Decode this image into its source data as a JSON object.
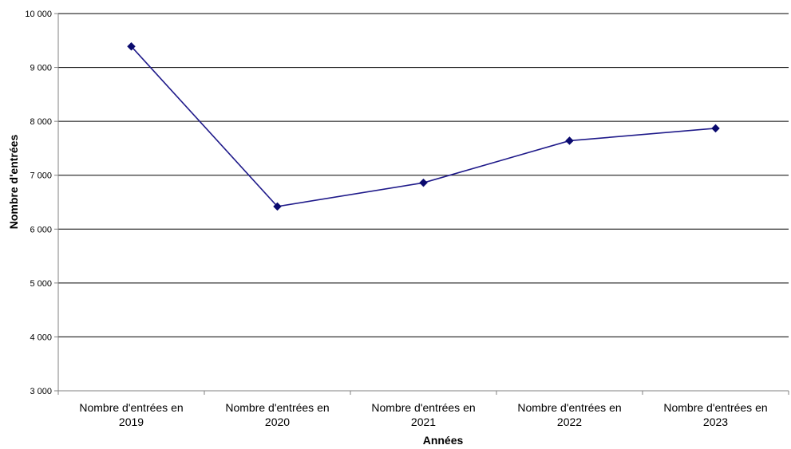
{
  "chart_data": {
    "type": "line",
    "categories": [
      "Nombre d'entrées en 2019",
      "Nombre d'entrées en 2020",
      "Nombre d'entrées en 2021",
      "Nombre d'entrées en 2022",
      "Nombre d'entrées en 2023"
    ],
    "category_lines": [
      [
        "Nombre d'entrées en",
        "2019"
      ],
      [
        "Nombre d'entrées en",
        "2020"
      ],
      [
        "Nombre d'entrées en",
        "2021"
      ],
      [
        "Nombre d'entrées en",
        "2022"
      ],
      [
        "Nombre d'entrées en",
        "2023"
      ]
    ],
    "series": [
      {
        "values": [
          9390,
          6420,
          6860,
          7640,
          7870
        ]
      }
    ],
    "xlabel": "Années",
    "ylabel": "Nombre d'entrées",
    "ylim": [
      3000,
      10000
    ],
    "yticks": [
      3000,
      4000,
      5000,
      6000,
      7000,
      8000,
      9000,
      10000
    ],
    "ytick_labels": [
      "3 000",
      "4 000",
      "5 000",
      "6 000",
      "7 000",
      "8 000",
      "9 000",
      "10 000"
    ],
    "grid": "horizontal",
    "legend": "none",
    "colors": {
      "line": "#1f1a8a",
      "marker": "#0a0a6e",
      "grid": "#000000",
      "axis": "#808080"
    }
  }
}
